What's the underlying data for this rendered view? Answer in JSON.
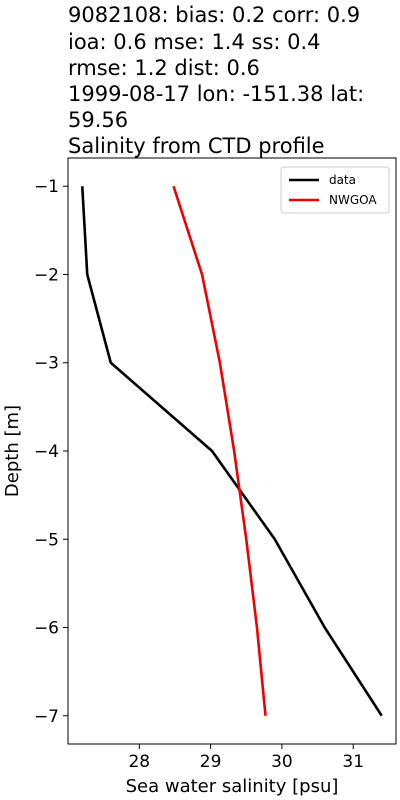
{
  "chart_data": {
    "type": "line",
    "title_lines": [
      "9082108: bias: 0.2  corr: 0.9",
      "ioa: 0.6  mse: 1.4  ss: 0.4",
      "rmse: 1.2  dist: 0.6",
      "1999-08-17 lon: -151.38 lat:",
      "59.56",
      "Salinity from CTD profile"
    ],
    "xlabel": "Sea water salinity [psu]",
    "ylabel": "Depth [m]",
    "xlim": [
      27.0,
      31.6
    ],
    "ylim": [
      -7.32,
      -0.68
    ],
    "x_ticks": [
      28,
      29,
      30,
      31
    ],
    "y_ticks": [
      -1,
      -2,
      -3,
      -4,
      -5,
      -6,
      -7
    ],
    "x_tick_labels": [
      "28",
      "29",
      "30",
      "31"
    ],
    "y_tick_labels": [
      "−1",
      "−2",
      "−3",
      "−4",
      "−5",
      "−6",
      "−7"
    ],
    "grid": false,
    "legend_position": "upper right",
    "series": [
      {
        "name": "data",
        "color": "#000000",
        "points": [
          {
            "x": 27.2,
            "y": -1
          },
          {
            "x": 27.27,
            "y": -2
          },
          {
            "x": 27.6,
            "y": -3
          },
          {
            "x": 29.02,
            "y": -4
          },
          {
            "x": 29.9,
            "y": -5
          },
          {
            "x": 30.6,
            "y": -6
          },
          {
            "x": 31.4,
            "y": -7
          }
        ]
      },
      {
        "name": "NWGOA",
        "color": "#ee0000",
        "points": [
          {
            "x": 28.48,
            "y": -1
          },
          {
            "x": 28.88,
            "y": -2
          },
          {
            "x": 29.13,
            "y": -3
          },
          {
            "x": 29.33,
            "y": -4
          },
          {
            "x": 29.5,
            "y": -5
          },
          {
            "x": 29.65,
            "y": -6
          },
          {
            "x": 29.77,
            "y": -7
          }
        ]
      }
    ]
  }
}
